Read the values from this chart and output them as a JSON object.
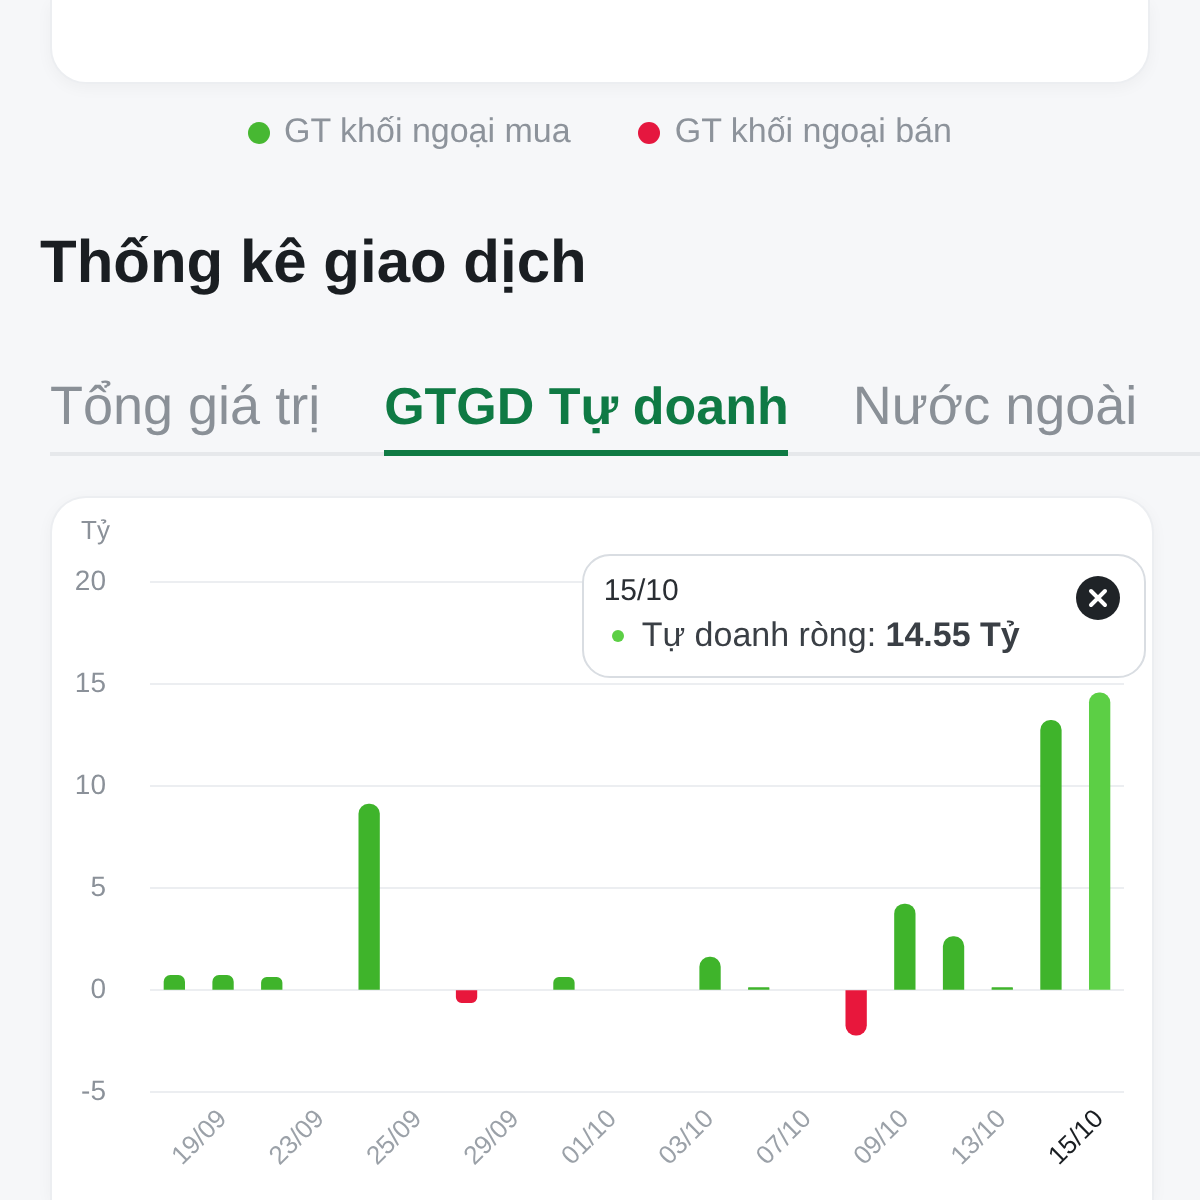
{
  "chart_data": [
    {
      "type": "other",
      "legend": "bottom",
      "series": [
        {
          "name": "GT khối ngoại mua",
          "color": "#47b832"
        },
        {
          "name": "GT khối ngoại bán",
          "color": "#e5173f"
        }
      ]
    },
    {
      "type": "bar",
      "title": "Thống kê giao dịch",
      "subtitle": "GTGD Tự doanh",
      "ylabel": "Tỷ",
      "categories": [
        null,
        "19/09",
        null,
        "23/09",
        null,
        "25/09",
        null,
        "29/09",
        null,
        "01/10",
        null,
        "03/10",
        null,
        "07/10",
        null,
        "09/10",
        null,
        "13/10",
        null,
        "15/10"
      ],
      "values": [
        0.7,
        0.7,
        0.6,
        null,
        9.1,
        null,
        -0.6,
        null,
        0.6,
        null,
        null,
        1.6,
        0.1,
        null,
        -2.2,
        4.2,
        2.6,
        0.1,
        13.2,
        14.55
      ],
      "colors": [
        "#3fb42b",
        "#3fb42b",
        "#3fb42b",
        "#3fb42b",
        "#3fb42b",
        "#3fb42b",
        "#e8173c",
        "#3fb42b",
        "#3fb42b",
        "#3fb42b",
        "#3fb42b",
        "#3fb42b",
        "#3fb42b",
        "#3fb42b",
        "#e8173c",
        "#3fb42b",
        "#3fb42b",
        "#3fb42b",
        "#3fb42b",
        "#5ccf45"
      ],
      "ylim": [
        -5,
        20
      ],
      "yticks": [
        -5,
        0,
        5,
        10,
        15,
        20
      ],
      "grid": "y",
      "annotations": [
        "Tổng giá trị",
        "Nước ngoài",
        {
          "text": "Tự doanh ròng: 14.55 Tỷ",
          "x": "15/10",
          "y": 14.55
        }
      ]
    }
  ]
}
